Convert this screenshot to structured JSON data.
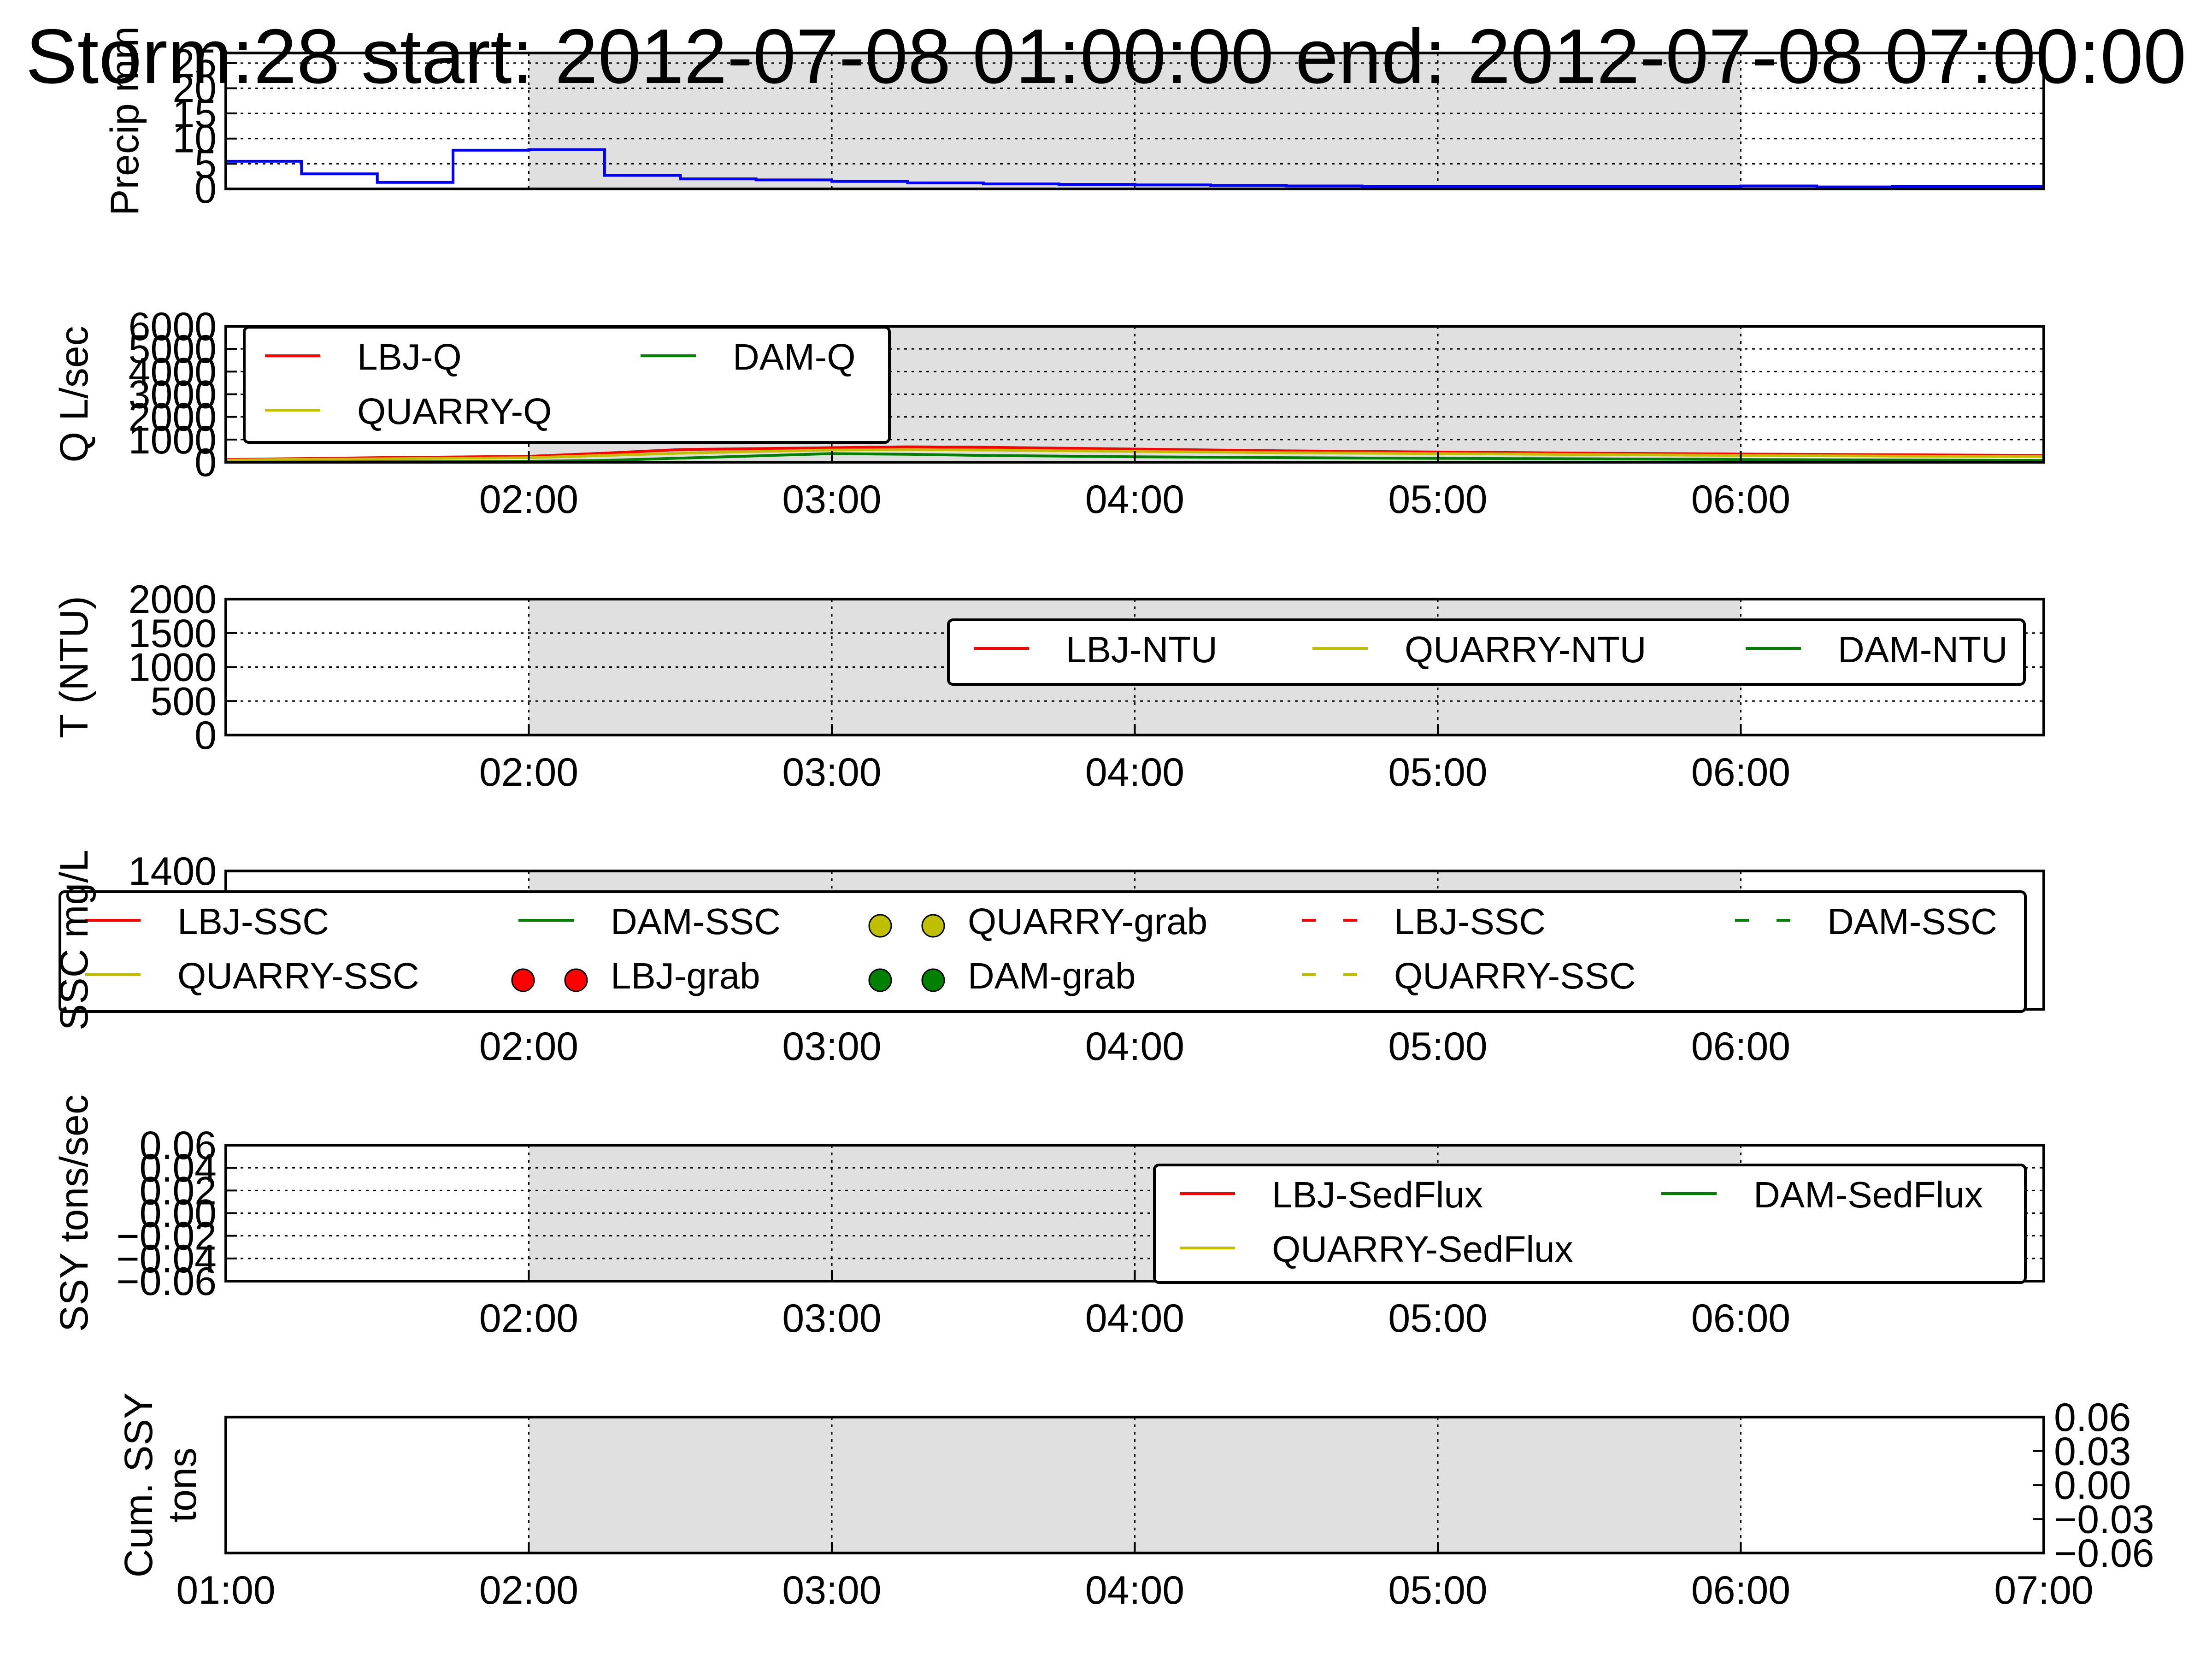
{
  "figure_title": "Storm:28 start: 2012-07-08 01:00:00 end: 2012-07-08 07:00:00",
  "x_time_labels": [
    "02:00",
    "03:00",
    "04:00",
    "05:00",
    "06:00"
  ],
  "x_time_labels_bottom": [
    "01:00",
    "02:00",
    "03:00",
    "04:00",
    "05:00",
    "06:00",
    "07:00"
  ],
  "colors": {
    "shade": "#e0e0e0",
    "precip": "#0000ff",
    "lbj": "#ff0000",
    "quarry": "#bfbf00",
    "dam": "#008000"
  },
  "chart_data": [
    {
      "id": "precip",
      "type": "line",
      "ylabel": "Precip mm",
      "ylim": [
        0,
        27
      ],
      "yticks": [
        "0",
        "5",
        "10",
        "15",
        "20",
        "25"
      ],
      "storm_shade": [
        "02:00",
        "06:00"
      ],
      "grid": true,
      "x": [
        "01:00",
        "01:15",
        "01:30",
        "01:45",
        "02:00",
        "02:15",
        "02:30",
        "02:45",
        "03:00",
        "03:15",
        "03:30",
        "03:45",
        "04:00",
        "04:15",
        "04:30",
        "04:45",
        "05:00",
        "05:15",
        "05:30",
        "05:45",
        "06:00",
        "06:15",
        "06:30",
        "06:45",
        "07:00"
      ],
      "series": [
        {
          "color_key": "precip",
          "step": true,
          "values": [
            5.5,
            3.0,
            1.3,
            7.7,
            7.8,
            2.7,
            2.0,
            1.8,
            1.5,
            1.2,
            1.0,
            0.9,
            0.8,
            0.7,
            0.6,
            0.5,
            0.5,
            0.5,
            0.5,
            0.5,
            0.6,
            0.4,
            0.5,
            0.5,
            0.5
          ]
        }
      ]
    },
    {
      "id": "discharge",
      "type": "line",
      "ylabel": "Q L/sec",
      "ylim": [
        0,
        6000
      ],
      "yticks": [
        "0",
        "1000",
        "2000",
        "3000",
        "4000",
        "5000",
        "6000"
      ],
      "storm_shade": [
        "02:00",
        "06:00"
      ],
      "grid": true,
      "legend_position": "top-left",
      "x": [
        "01:00",
        "01:30",
        "02:00",
        "02:15",
        "02:30",
        "02:45",
        "03:00",
        "03:15",
        "03:30",
        "04:00",
        "04:30",
        "05:00",
        "05:30",
        "06:00",
        "06:30",
        "07:00"
      ],
      "series": [
        {
          "name": "LBJ-Q",
          "color_key": "lbj",
          "values": [
            120,
            200,
            260,
            400,
            560,
            600,
            640,
            680,
            660,
            580,
            500,
            450,
            400,
            360,
            330,
            300
          ]
        },
        {
          "name": "QUARRY-Q",
          "color_key": "quarry",
          "values": [
            100,
            150,
            200,
            300,
            400,
            480,
            540,
            560,
            540,
            480,
            420,
            380,
            340,
            300,
            270,
            250
          ]
        },
        {
          "name": "DAM-Q",
          "color_key": "dam",
          "values": [
            0,
            20,
            40,
            80,
            180,
            280,
            380,
            350,
            300,
            240,
            200,
            170,
            150,
            120,
            100,
            80
          ]
        }
      ]
    },
    {
      "id": "turbidity",
      "type": "line",
      "ylabel": "T (NTU)",
      "ylim": [
        0,
        2000
      ],
      "yticks": [
        "0",
        "500",
        "1000",
        "1500",
        "2000"
      ],
      "storm_shade": [
        "02:00",
        "06:00"
      ],
      "grid": true,
      "legend_position": "top-right",
      "legend": [
        "LBJ-NTU",
        "QUARRY-NTU",
        "DAM-NTU"
      ],
      "series": [
        {
          "name": "LBJ-NTU",
          "color_key": "lbj",
          "values": []
        },
        {
          "name": "QUARRY-NTU",
          "color_key": "quarry",
          "values": []
        },
        {
          "name": "DAM-NTU",
          "color_key": "dam",
          "values": []
        }
      ]
    },
    {
      "id": "ssc",
      "type": "line",
      "ylabel": "SSC mg/L",
      "ylim": [
        0,
        1400
      ],
      "yticks": [
        "1400"
      ],
      "storm_shade": [
        "02:00",
        "06:00"
      ],
      "grid": true,
      "legend_position": "upper",
      "legend": [
        "LBJ-SSC",
        "QUARRY-SSC",
        "DAM-SSC",
        "LBJ-grab",
        "QUARRY-grab",
        "DAM-grab",
        "LBJ-SSC",
        "QUARRY-SSC",
        "DAM-SSC"
      ],
      "series": []
    },
    {
      "id": "sedflux",
      "type": "line",
      "ylabel": "SSY tons/sec",
      "ylim": [
        -0.06,
        0.06
      ],
      "yticks": [
        "−0.06",
        "−0.04",
        "−0.02",
        "0.00",
        "0.02",
        "0.04",
        "0.06"
      ],
      "storm_shade": [
        "02:00",
        "06:00"
      ],
      "grid": true,
      "legend_position": "right",
      "legend": [
        "LBJ-SedFlux",
        "QUARRY-SedFlux",
        "DAM-SedFlux"
      ],
      "series": []
    },
    {
      "id": "cumulative",
      "type": "line",
      "ylabel": "Cum. SSY tons",
      "ylim": [
        -0.06,
        0.06
      ],
      "yticks_right": [
        "−0.06",
        "−0.03",
        "0.00",
        "0.03",
        "0.06"
      ],
      "storm_shade": [
        "02:00",
        "06:00"
      ],
      "grid": true,
      "xlim": [
        "01:00",
        "07:00"
      ],
      "series": []
    }
  ],
  "ylabels": {
    "precip": "Precip mm",
    "discharge": "Q L/sec",
    "turbidity": "T (NTU)",
    "ssc_visible": "SSC mg/L",
    "sedflux": "SSY tons/sec",
    "cumulative_line1": "Cum. SSY",
    "cumulative_line2": "tons"
  },
  "ytick_labels": {
    "precip": [
      "0",
      "5",
      "10",
      "15",
      "20",
      "25"
    ],
    "discharge": [
      "0",
      "1000",
      "2000",
      "3000",
      "4000",
      "5000",
      "6000"
    ],
    "turbidity": [
      "0",
      "500",
      "1000",
      "1500",
      "2000"
    ],
    "ssc": [
      "1400"
    ],
    "sedflux": [
      "−0.06",
      "−0.04",
      "−0.02",
      "0.00",
      "0.02",
      "0.04",
      "0.06"
    ],
    "cumulative": [
      "−0.06",
      "−0.03",
      "0.00",
      "0.03",
      "0.06"
    ]
  },
  "legends": {
    "discharge": [
      {
        "label": "LBJ-Q",
        "color_key": "lbj",
        "style": "line"
      },
      {
        "label": "DAM-Q",
        "color_key": "dam",
        "style": "line"
      },
      {
        "label": "QUARRY-Q",
        "color_key": "quarry",
        "style": "line"
      }
    ],
    "turbidity": [
      {
        "label": "LBJ-NTU",
        "color_key": "lbj",
        "style": "line"
      },
      {
        "label": "QUARRY-NTU",
        "color_key": "quarry",
        "style": "line"
      },
      {
        "label": "DAM-NTU",
        "color_key": "dam",
        "style": "line"
      }
    ],
    "ssc": [
      {
        "label": "LBJ-SSC",
        "color_key": "lbj",
        "style": "line"
      },
      {
        "label": "DAM-SSC",
        "color_key": "dam",
        "style": "line"
      },
      {
        "label": "QUARRY-grab",
        "color_key": "quarry",
        "style": "dots"
      },
      {
        "label": "LBJ-SSC",
        "color_key": "lbj",
        "style": "dash"
      },
      {
        "label": "DAM-SSC",
        "color_key": "dam",
        "style": "dash"
      },
      {
        "label": "QUARRY-SSC",
        "color_key": "quarry",
        "style": "line"
      },
      {
        "label": "LBJ-grab",
        "color_key": "lbj",
        "style": "dots"
      },
      {
        "label": "DAM-grab",
        "color_key": "dam",
        "style": "dots"
      },
      {
        "label": "QUARRY-SSC",
        "color_key": "quarry",
        "style": "dash"
      }
    ],
    "sedflux": [
      {
        "label": "LBJ-SedFlux",
        "color_key": "lbj",
        "style": "line"
      },
      {
        "label": "DAM-SedFlux",
        "color_key": "dam",
        "style": "line"
      },
      {
        "label": "QUARRY-SedFlux",
        "color_key": "quarry",
        "style": "line"
      }
    ]
  }
}
